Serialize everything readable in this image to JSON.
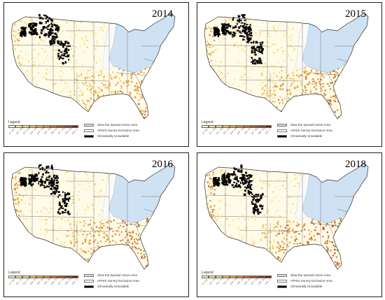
{
  "panels": [
    {
      "year": "2014",
      "intensity": 0.55
    },
    {
      "year": "2015",
      "intensity": 0.75
    },
    {
      "year": "2016",
      "intensity": 0.85
    },
    {
      "year": "2018",
      "intensity": 0.95
    }
  ],
  "legend": {
    "title": "Legend",
    "ramp_labels": [
      "0 - 0.1",
      "0.1 - 0.2",
      "0.2 - 0.3",
      "0.3 - 0.4",
      "0.4 - 0.5",
      "0.5 - 0.6",
      "0.6 - 0.7",
      "0.7 - 0.8",
      "0.8 - 0.9",
      "0.9 - 1"
    ],
    "ramp_colors": [
      "#fff5c2",
      "#fde9a0",
      "#fbd97a",
      "#f6c357",
      "#eda73d",
      "#e08b2e",
      "#cc6d22",
      "#b5521a",
      "#963b14",
      "#6e250c"
    ],
    "stsaa": "Slow the Spread Action Area",
    "aphis": "APHIS Survey Exclusion Area",
    "unsuitable": "Climatically Unsuitable"
  },
  "colors": {
    "stsaa": "#cfe2f3",
    "aphis": "#ffffff",
    "unsuitable": "#000000",
    "border": "#555555"
  }
}
